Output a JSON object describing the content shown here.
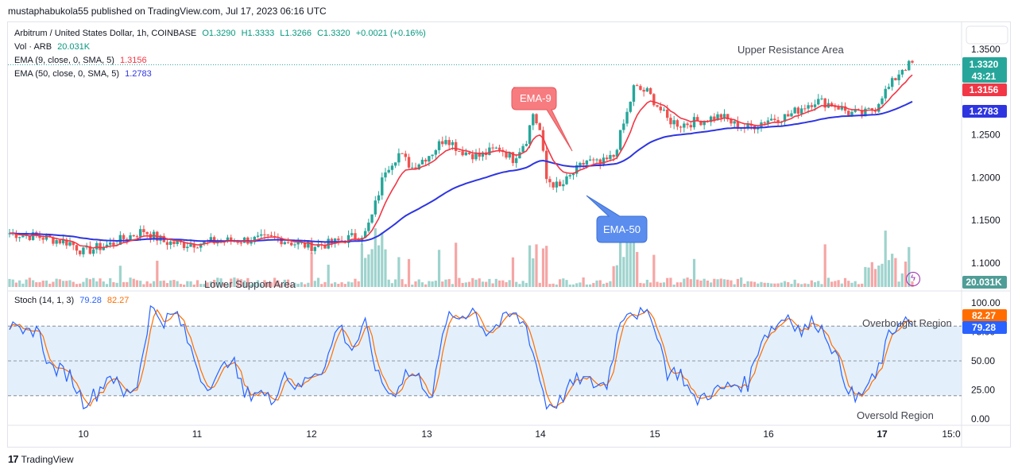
{
  "header": {
    "published_line": "mustaphabukola55 published on TradingView.com, Jul 17, 2023 06:16 UTC"
  },
  "legend": {
    "symbol_line": {
      "name": "Arbitrum / United States Dollar, 1h, COINBASE",
      "open": "O1.3290",
      "high": "H1.3333",
      "low": "L1.3266",
      "close": "C1.3320",
      "change": "+0.0021 (+0.16%)"
    },
    "volume_line": {
      "label": "Vol · ARB",
      "value": "20.031K"
    },
    "ema9_line": {
      "label": "EMA (9, close, 0, SMA, 5)",
      "value": "1.3156"
    },
    "ema50_line": {
      "label": "EMA (50, close, 0, SMA, 5)",
      "value": "1.2783"
    },
    "stoch_line": {
      "label": "Stoch (14, 1, 3)",
      "k": "79.28",
      "d": "82.27"
    }
  },
  "annotations": {
    "upper_resistance": "Upper Resistance Area",
    "lower_support": "Lower Support Area",
    "ema9_callout": "EMA-9",
    "ema50_callout": "EMA-50",
    "overbought": "Overbought Region",
    "oversold": "Oversold Region"
  },
  "price_badges": {
    "last_price": "1.3320",
    "countdown": "43:21",
    "ema9": "1.3156",
    "ema50": "1.2783",
    "volume": "20.031K",
    "stoch_d": "82.27",
    "stoch_k": "79.28"
  },
  "footer": {
    "brand": "TradingView"
  },
  "colors": {
    "up": "#26a69a",
    "down": "#ef5350",
    "ema9": "#f23645",
    "ema50": "#2e35e0",
    "stoch_k": "#2962ff",
    "stoch_d": "#ff6d00",
    "stoch_band": "#e3f0fb",
    "callout_red": "#f77c80",
    "callout_blue": "#5b8def"
  },
  "chart_data": [
    {
      "type": "candlestick",
      "title": "Arbitrum / United States Dollar, 1h, COINBASE",
      "x_tick_labels": [
        "10",
        "11",
        "12",
        "13",
        "14",
        "15",
        "16",
        "17",
        "15:0"
      ],
      "y_tick_labels": [
        "1.3500",
        "1.3000",
        "1.2500",
        "1.2000",
        "1.1500",
        "1.1000"
      ],
      "ylim": [
        1.09,
        1.36
      ],
      "grid": false,
      "anchors": [
        [
          0,
          1.135
        ],
        [
          10,
          1.13
        ],
        [
          18,
          1.124
        ],
        [
          22,
          1.113
        ],
        [
          26,
          1.118
        ],
        [
          30,
          1.122
        ],
        [
          36,
          1.132
        ],
        [
          40,
          1.138
        ],
        [
          46,
          1.125
        ],
        [
          52,
          1.122
        ],
        [
          60,
          1.125
        ],
        [
          70,
          1.127
        ],
        [
          80,
          1.129
        ],
        [
          86,
          1.122
        ],
        [
          90,
          1.12
        ],
        [
          96,
          1.123
        ],
        [
          100,
          1.128
        ],
        [
          106,
          1.135
        ],
        [
          108,
          1.155
        ],
        [
          112,
          1.21
        ],
        [
          116,
          1.228
        ],
        [
          120,
          1.212
        ],
        [
          126,
          1.23
        ],
        [
          130,
          1.248
        ],
        [
          134,
          1.232
        ],
        [
          140,
          1.225
        ],
        [
          146,
          1.235
        ],
        [
          150,
          1.222
        ],
        [
          154,
          1.245
        ],
        [
          156,
          1.275
        ],
        [
          158,
          1.255
        ],
        [
          160,
          1.198
        ],
        [
          164,
          1.188
        ],
        [
          168,
          1.205
        ],
        [
          172,
          1.22
        ],
        [
          176,
          1.215
        ],
        [
          180,
          1.225
        ],
        [
          184,
          1.275
        ],
        [
          186,
          1.305
        ],
        [
          190,
          1.3
        ],
        [
          192,
          1.29
        ],
        [
          196,
          1.268
        ],
        [
          200,
          1.262
        ],
        [
          206,
          1.267
        ],
        [
          212,
          1.272
        ],
        [
          216,
          1.262
        ],
        [
          220,
          1.258
        ],
        [
          226,
          1.268
        ],
        [
          232,
          1.272
        ],
        [
          236,
          1.282
        ],
        [
          240,
          1.29
        ],
        [
          246,
          1.285
        ],
        [
          250,
          1.276
        ],
        [
          254,
          1.273
        ],
        [
          258,
          1.282
        ],
        [
          260,
          1.297
        ],
        [
          262,
          1.305
        ],
        [
          266,
          1.328
        ],
        [
          269,
          1.333
        ]
      ],
      "candle_count": 270,
      "series": [
        {
          "name": "EMA (9, close, 0, SMA, 5)",
          "last": 1.3156
        },
        {
          "name": "EMA (50, close, 0, SMA, 5)",
          "last": 1.2783
        }
      ],
      "volume": {
        "name": "Vol · ARB",
        "last": "20.031K"
      }
    },
    {
      "type": "line",
      "title": "Stoch (14, 1, 3)",
      "y_tick_labels": [
        "100.00",
        "75.00",
        "50.00",
        "25.00",
        "0.00"
      ],
      "ylim": [
        0,
        100
      ],
      "bands": [
        20,
        80
      ],
      "series": [
        {
          "name": "%K",
          "last": 79.28
        },
        {
          "name": "%D",
          "last": 82.27
        }
      ],
      "k_points": [
        [
          0,
          80
        ],
        [
          4,
          70
        ],
        [
          8,
          80
        ],
        [
          12,
          45
        ],
        [
          18,
          38
        ],
        [
          22,
          15
        ],
        [
          26,
          22
        ],
        [
          30,
          40
        ],
        [
          34,
          20
        ],
        [
          38,
          30
        ],
        [
          42,
          95
        ],
        [
          46,
          85
        ],
        [
          50,
          90
        ],
        [
          54,
          60
        ],
        [
          58,
          30
        ],
        [
          62,
          35
        ],
        [
          66,
          55
        ],
        [
          70,
          20
        ],
        [
          74,
          25
        ],
        [
          78,
          15
        ],
        [
          82,
          40
        ],
        [
          86,
          25
        ],
        [
          90,
          40
        ],
        [
          94,
          45
        ],
        [
          98,
          82
        ],
        [
          102,
          60
        ],
        [
          106,
          80
        ],
        [
          110,
          35
        ],
        [
          114,
          20
        ],
        [
          118,
          40
        ],
        [
          122,
          35
        ],
        [
          126,
          20
        ],
        [
          130,
          85
        ],
        [
          134,
          88
        ],
        [
          138,
          95
        ],
        [
          142,
          75
        ],
        [
          146,
          82
        ],
        [
          150,
          90
        ],
        [
          154,
          80
        ],
        [
          158,
          35
        ],
        [
          160,
          12
        ],
        [
          164,
          15
        ],
        [
          166,
          25
        ],
        [
          170,
          35
        ],
        [
          174,
          30
        ],
        [
          178,
          30
        ],
        [
          182,
          85
        ],
        [
          184,
          95
        ],
        [
          188,
          90
        ],
        [
          192,
          85
        ],
        [
          196,
          40
        ],
        [
          200,
          40
        ],
        [
          204,
          15
        ],
        [
          208,
          22
        ],
        [
          212,
          25
        ],
        [
          216,
          30
        ],
        [
          220,
          30
        ],
        [
          224,
          70
        ],
        [
          228,
          80
        ],
        [
          232,
          90
        ],
        [
          236,
          75
        ],
        [
          240,
          85
        ],
        [
          244,
          70
        ],
        [
          248,
          40
        ],
        [
          252,
          15
        ],
        [
          256,
          30
        ],
        [
          258,
          35
        ],
        [
          262,
          70
        ],
        [
          266,
          88
        ],
        [
          269,
          79.28
        ]
      ]
    }
  ]
}
